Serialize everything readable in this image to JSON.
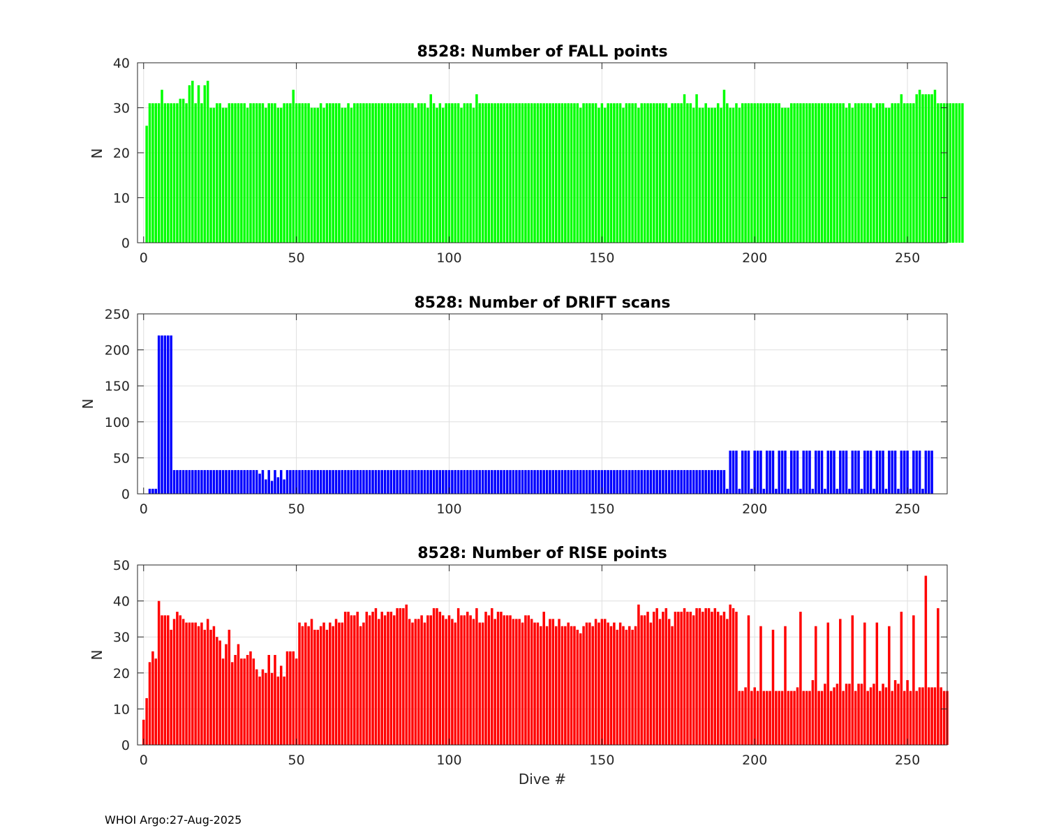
{
  "footer_text": "WHOI Argo:27-Aug-2025",
  "chart_data": [
    {
      "type": "bar",
      "title": "8528: Number of FALL points",
      "xlabel": "",
      "ylabel": "N",
      "color": "#00ff00",
      "xlim": [
        -2,
        263
      ],
      "ylim": [
        0,
        40
      ],
      "xticks": [
        0,
        50,
        100,
        150,
        200,
        250
      ],
      "yticks": [
        0,
        10,
        20,
        30,
        40
      ],
      "x_start": 1,
      "values": [
        26,
        31,
        31,
        31,
        31,
        34,
        31,
        31,
        31,
        31,
        31,
        32,
        32,
        31,
        35,
        36,
        31,
        35,
        31,
        35,
        36,
        30,
        30,
        31,
        31,
        30,
        30,
        31,
        31,
        31,
        31,
        31,
        31,
        30,
        31,
        31,
        31,
        31,
        31,
        30,
        31,
        31,
        31,
        30,
        30,
        31,
        31,
        31,
        34,
        31,
        31,
        31,
        31,
        31,
        30,
        30,
        30,
        31,
        30,
        31,
        31,
        31,
        31,
        31,
        30,
        30,
        31,
        30,
        31,
        31,
        31,
        31,
        31,
        31,
        31,
        31,
        31,
        31,
        31,
        31,
        31,
        31,
        31,
        31,
        31,
        31,
        31,
        31,
        30,
        31,
        31,
        31,
        30,
        33,
        31,
        30,
        31,
        30,
        31,
        31,
        31,
        31,
        31,
        30,
        31,
        31,
        31,
        30,
        33,
        31,
        31,
        31,
        31,
        31,
        31,
        31,
        31,
        31,
        31,
        31,
        31,
        31,
        31,
        31,
        31,
        31,
        31,
        31,
        31,
        31,
        31,
        31,
        31,
        31,
        31,
        31,
        31,
        31,
        31,
        31,
        31,
        31,
        30,
        31,
        31,
        31,
        31,
        31,
        30,
        31,
        30,
        31,
        31,
        31,
        31,
        31,
        30,
        31,
        31,
        31,
        31,
        30,
        31,
        31,
        31,
        31,
        31,
        31,
        31,
        31,
        31,
        30,
        31,
        31,
        31,
        31,
        33,
        31,
        31,
        30,
        33,
        30,
        30,
        31,
        30,
        30,
        30,
        31,
        30,
        34,
        31,
        30,
        30,
        31,
        30,
        31,
        31,
        31,
        31,
        31,
        31,
        31,
        31,
        31,
        31,
        31,
        31,
        31,
        30,
        30,
        30,
        31,
        31,
        31,
        31,
        31,
        31,
        31,
        31,
        31,
        31,
        31,
        31,
        31,
        31,
        31,
        31,
        31,
        31,
        30,
        31,
        30,
        31,
        31,
        31,
        31,
        31,
        31,
        30,
        31,
        31,
        31,
        30,
        30,
        31,
        31,
        31,
        33,
        31,
        31,
        31,
        31,
        33,
        34,
        33,
        33,
        33,
        33,
        34,
        31,
        31,
        31,
        31,
        31,
        31,
        31,
        31,
        31
      ]
    },
    {
      "type": "bar",
      "title": "8528: Number of DRIFT scans",
      "xlabel": "",
      "ylabel": "N",
      "color": "#0000ff",
      "xlim": [
        -2,
        263
      ],
      "ylim": [
        0,
        250
      ],
      "xticks": [
        0,
        50,
        100,
        150,
        200,
        250
      ],
      "yticks": [
        0,
        50,
        100,
        150,
        200,
        250
      ],
      "x_start": 1,
      "values": [
        0,
        7,
        7,
        7,
        220,
        220,
        220,
        220,
        220,
        33,
        33,
        33,
        33,
        33,
        33,
        33,
        33,
        33,
        33,
        33,
        33,
        33,
        33,
        33,
        33,
        33,
        33,
        33,
        33,
        33,
        33,
        33,
        33,
        33,
        33,
        33,
        33,
        28,
        33,
        20,
        33,
        18,
        33,
        23,
        33,
        20,
        33,
        33,
        33,
        33,
        33,
        33,
        33,
        33,
        33,
        33,
        33,
        33,
        33,
        33,
        33,
        33,
        33,
        33,
        33,
        33,
        33,
        33,
        33,
        33,
        33,
        33,
        33,
        33,
        33,
        33,
        33,
        33,
        33,
        33,
        33,
        33,
        33,
        33,
        33,
        33,
        33,
        33,
        33,
        33,
        33,
        33,
        33,
        33,
        33,
        33,
        33,
        33,
        33,
        33,
        33,
        33,
        33,
        33,
        33,
        33,
        33,
        33,
        33,
        33,
        33,
        33,
        33,
        33,
        33,
        33,
        33,
        33,
        33,
        33,
        33,
        33,
        33,
        33,
        33,
        33,
        33,
        33,
        33,
        33,
        33,
        33,
        33,
        33,
        33,
        33,
        33,
        33,
        33,
        33,
        33,
        33,
        33,
        33,
        33,
        33,
        33,
        33,
        33,
        33,
        33,
        33,
        33,
        33,
        33,
        33,
        33,
        33,
        33,
        33,
        33,
        33,
        33,
        33,
        33,
        33,
        33,
        33,
        33,
        33,
        33,
        33,
        33,
        33,
        33,
        33,
        33,
        33,
        33,
        33,
        33,
        33,
        33,
        33,
        33,
        33,
        33,
        33,
        33,
        33,
        7,
        60,
        60,
        60,
        7,
        60,
        60,
        60,
        7,
        60,
        60,
        60,
        7,
        60,
        60,
        60,
        7,
        60,
        60,
        60,
        7,
        60,
        60,
        60,
        7,
        60,
        60,
        60,
        7,
        60,
        60,
        60,
        7,
        60,
        60,
        60,
        7,
        60,
        60,
        60,
        7,
        60,
        60,
        60,
        7,
        60,
        60,
        60,
        7,
        60,
        60,
        60,
        7,
        60,
        60,
        60,
        7,
        60,
        60,
        60,
        7,
        60,
        60,
        60,
        7,
        60,
        60,
        60
      ]
    },
    {
      "type": "bar",
      "title": "8528: Number of RISE points",
      "xlabel": "Dive #",
      "ylabel": "N",
      "color": "#ff0000",
      "xlim": [
        -2,
        263
      ],
      "ylim": [
        0,
        50
      ],
      "xticks": [
        0,
        50,
        100,
        150,
        200,
        250
      ],
      "yticks": [
        0,
        10,
        20,
        30,
        40,
        50
      ],
      "x_start": 0,
      "values": [
        7,
        13,
        23,
        26,
        24,
        40,
        36,
        36,
        36,
        32,
        35,
        37,
        36,
        35,
        34,
        34,
        34,
        34,
        33,
        34,
        32,
        35,
        32,
        33,
        30,
        29,
        24,
        28,
        32,
        23,
        25,
        28,
        24,
        24,
        25,
        26,
        24,
        21,
        19,
        21,
        20,
        25,
        20,
        25,
        19,
        22,
        19,
        26,
        26,
        26,
        24,
        34,
        33,
        34,
        33,
        35,
        32,
        32,
        33,
        34,
        32,
        34,
        33,
        35,
        34,
        34,
        37,
        37,
        36,
        36,
        37,
        33,
        34,
        37,
        36,
        37,
        38,
        35,
        37,
        36,
        37,
        37,
        36,
        38,
        38,
        38,
        39,
        35,
        34,
        35,
        35,
        36,
        34,
        36,
        36,
        38,
        38,
        37,
        36,
        35,
        36,
        35,
        34,
        38,
        36,
        36,
        37,
        36,
        35,
        38,
        34,
        34,
        37,
        36,
        38,
        35,
        37,
        37,
        36,
        36,
        36,
        35,
        35,
        35,
        34,
        36,
        36,
        35,
        34,
        34,
        33,
        37,
        33,
        35,
        35,
        33,
        35,
        33,
        33,
        34,
        33,
        33,
        32,
        31,
        33,
        34,
        34,
        33,
        35,
        34,
        35,
        35,
        34,
        33,
        34,
        32,
        34,
        33,
        32,
        33,
        32,
        33,
        39,
        36,
        36,
        37,
        34,
        37,
        38,
        35,
        37,
        38,
        35,
        33,
        37,
        37,
        37,
        38,
        37,
        37,
        36,
        38,
        38,
        37,
        38,
        38,
        37,
        38,
        37,
        36,
        37,
        35,
        39,
        38,
        37,
        15,
        15,
        16,
        36,
        15,
        16,
        15,
        33,
        15,
        15,
        15,
        32,
        15,
        15,
        15,
        33,
        15,
        15,
        15,
        16,
        37,
        15,
        15,
        15,
        18,
        33,
        15,
        15,
        17,
        34,
        15,
        16,
        17,
        35,
        15,
        17,
        17,
        36,
        15,
        17,
        17,
        34,
        15,
        16,
        17,
        34,
        15,
        17,
        16,
        33,
        15,
        18,
        17,
        37,
        15,
        18,
        15,
        36,
        15,
        16,
        16,
        47,
        16,
        16,
        16,
        38,
        16,
        15,
        15
      ]
    }
  ]
}
